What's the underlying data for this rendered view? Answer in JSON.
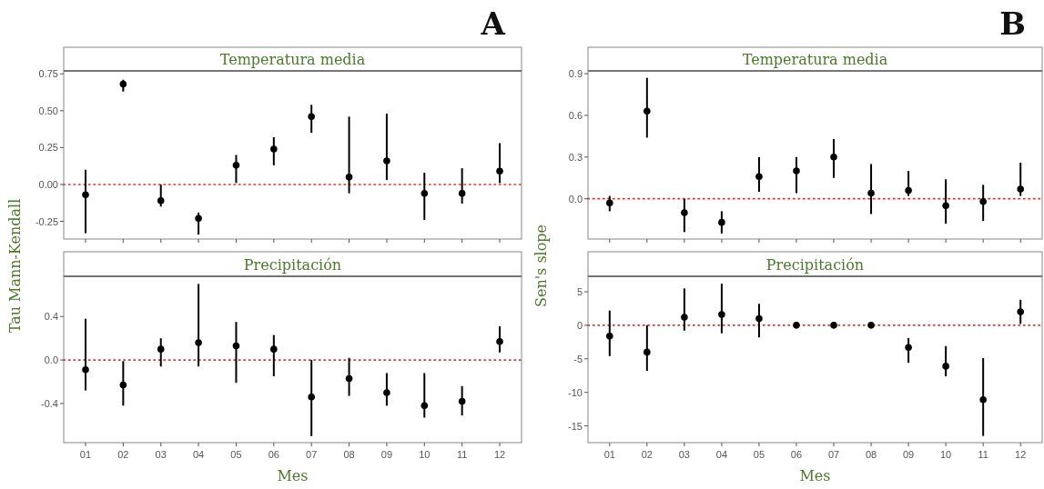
{
  "chart_data": [
    {
      "type": "scatter",
      "title": "Temperatura media",
      "ylabel": "Tau Mann-Kendall",
      "annotations": [
        "A"
      ],
      "categories": [
        "01",
        "02",
        "03",
        "04",
        "05",
        "06",
        "07",
        "08",
        "09",
        "10",
        "11",
        "12"
      ],
      "color": "#000000",
      "marker": "circle",
      "tick_labels": "y",
      "grid": false,
      "ylim": [
        -0.37,
        0.77
      ],
      "yticks": [
        {
          "value": -0.25,
          "label": "-0.25"
        },
        {
          "value": 0,
          "label": "0.00"
        },
        {
          "value": 0.25,
          "label": "0.25"
        },
        {
          "value": 0.5,
          "label": "0.50"
        },
        {
          "value": 0.75,
          "label": "0.75"
        }
      ],
      "values": [
        -0.07,
        0.68,
        -0.11,
        -0.23,
        0.13,
        0.24,
        0.46,
        0.05,
        0.16,
        -0.06,
        -0.06,
        0.09
      ],
      "errors": [
        [
          -0.33,
          0.1
        ],
        [
          0.63,
          0.71
        ],
        [
          -0.15,
          0
        ],
        [
          -0.34,
          -0.19
        ],
        [
          0.01,
          0.2
        ],
        [
          0.13,
          0.32
        ],
        [
          0.35,
          0.54
        ],
        [
          -0.06,
          0.46
        ],
        [
          0.03,
          0.48
        ],
        [
          -0.24,
          0.08
        ],
        [
          -0.13,
          0.11
        ],
        [
          0.01,
          0.28
        ]
      ],
      "ref_lines": [
        {
          "axis": "y",
          "value": 0,
          "color": "#e03030",
          "line_style": "dotted"
        }
      ]
    },
    {
      "type": "scatter",
      "title": "Temperatura media",
      "ylabel": "Sen's slope",
      "annotations": [
        "B"
      ],
      "categories": [
        "01",
        "02",
        "03",
        "04",
        "05",
        "06",
        "07",
        "08",
        "09",
        "10",
        "11",
        "12"
      ],
      "color": "#000000",
      "marker": "circle",
      "tick_labels": "y",
      "grid": false,
      "ylim": [
        -0.29,
        0.92
      ],
      "yticks": [
        {
          "value": 0,
          "label": "0.0"
        },
        0.3,
        0.6,
        0.9
      ],
      "values": [
        -0.03,
        0.63,
        -0.1,
        -0.17,
        0.16,
        0.2,
        0.3,
        0.04,
        0.06,
        -0.05,
        -0.02,
        0.07
      ],
      "errors": [
        [
          -0.09,
          0.02
        ],
        [
          0.44,
          0.87
        ],
        [
          -0.24,
          0
        ],
        [
          -0.25,
          -0.09
        ],
        [
          0.05,
          0.3
        ],
        [
          0.04,
          0.3
        ],
        [
          0.15,
          0.43
        ],
        [
          -0.11,
          0.25
        ],
        [
          0.02,
          0.2
        ],
        [
          -0.18,
          0.14
        ],
        [
          -0.16,
          0.1
        ],
        [
          0.02,
          0.26
        ]
      ],
      "ref_lines": [
        {
          "axis": "y",
          "value": 0,
          "color": "#e03030",
          "line_style": "dotted"
        }
      ]
    },
    {
      "type": "scatter",
      "title": "Precipitación",
      "xlabel": "Mes",
      "categories": [
        "01",
        "02",
        "03",
        "04",
        "05",
        "06",
        "07",
        "08",
        "09",
        "10",
        "11",
        "12"
      ],
      "color": "#000000",
      "marker": "circle",
      "grid": false,
      "ylim": [
        -0.76,
        0.77
      ],
      "yticks": [
        -0.4,
        {
          "value": 0,
          "label": "0.0"
        },
        0.4
      ],
      "values": [
        -0.09,
        -0.23,
        0.1,
        0.16,
        0.13,
        0.1,
        -0.34,
        -0.17,
        -0.3,
        -0.42,
        -0.38,
        0.17
      ],
      "errors": [
        [
          -0.28,
          0.38
        ],
        [
          -0.42,
          -0.01
        ],
        [
          -0.06,
          0.2
        ],
        [
          -0.06,
          0.7
        ],
        [
          -0.21,
          0.35
        ],
        [
          -0.15,
          0.23
        ],
        [
          -0.7,
          0
        ],
        [
          -0.33,
          0.02
        ],
        [
          -0.42,
          -0.12
        ],
        [
          -0.53,
          -0.12
        ],
        [
          -0.51,
          -0.24
        ],
        [
          0.07,
          0.31
        ]
      ],
      "ref_lines": [
        {
          "axis": "y",
          "value": 0,
          "color": "#e03030",
          "line_style": "dotted"
        }
      ]
    },
    {
      "type": "scatter",
      "title": "Precipitación",
      "xlabel": "Mes",
      "categories": [
        "01",
        "02",
        "03",
        "04",
        "05",
        "06",
        "07",
        "08",
        "09",
        "10",
        "11",
        "12"
      ],
      "color": "#000000",
      "marker": "circle",
      "grid": false,
      "ylim": [
        -17.5,
        7.3
      ],
      "yticks": [
        -15,
        -10,
        -5,
        0,
        5
      ],
      "values": [
        -1.6,
        -4,
        1.2,
        1.6,
        1,
        0,
        0,
        0,
        -3.3,
        -6.1,
        -11.1,
        2
      ],
      "errors": [
        [
          -4.6,
          2.2
        ],
        [
          -6.8,
          0
        ],
        [
          -0.8,
          5.5
        ],
        [
          -1.2,
          6.2
        ],
        [
          -1.8,
          3.2
        ],
        null,
        null,
        null,
        [
          -5.6,
          -1.9
        ],
        [
          -7.6,
          -3.1
        ],
        [
          -16.5,
          -4.9
        ],
        [
          0.2,
          3.8
        ]
      ],
      "ref_lines": [
        {
          "axis": "y",
          "value": 0,
          "color": "#e03030",
          "line_style": "dotted"
        }
      ]
    }
  ]
}
